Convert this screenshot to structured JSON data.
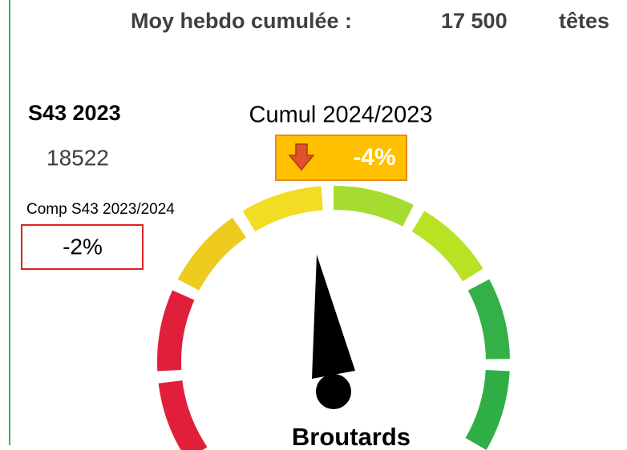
{
  "header": {
    "label": "Moy hebdo cumulée :",
    "value": "17 500",
    "unit": "têtes"
  },
  "week": {
    "title": "S43 2023",
    "value": "18522"
  },
  "comparison": {
    "label": "Comp S43 2023/2024",
    "value": "-2%"
  },
  "cumul": {
    "label": "Cumul 2024/2023",
    "value": "-4%"
  },
  "gauge": {
    "label": "Broutards"
  }
}
